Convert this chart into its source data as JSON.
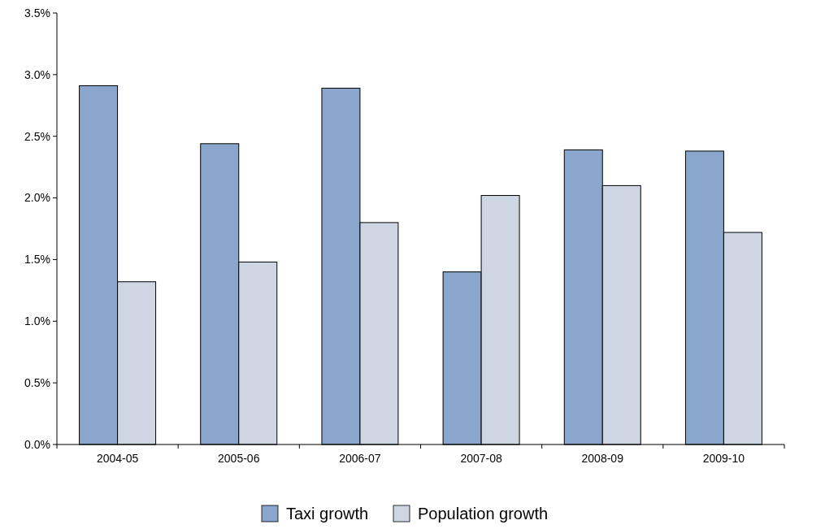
{
  "chart_data": {
    "type": "bar",
    "categories": [
      "2004-05",
      "2005-06",
      "2006-07",
      "2007-08",
      "2008-09",
      "2009-10"
    ],
    "series": [
      {
        "name": "Taxi growth",
        "color": "#8aa6cc",
        "values": [
          2.91,
          2.44,
          2.89,
          1.4,
          2.39,
          2.38
        ]
      },
      {
        "name": "Population growth",
        "color": "#cdd6e2",
        "values": [
          1.32,
          1.48,
          1.8,
          2.02,
          2.1,
          1.72
        ]
      }
    ],
    "ylim": [
      0,
      3.5
    ],
    "yticks": [
      {
        "value": 0,
        "label": "0.0%"
      },
      {
        "value": 0.5,
        "label": "0.5%"
      },
      {
        "value": 1,
        "label": "1.0%"
      },
      {
        "value": 1.5,
        "label": "1.5%"
      },
      {
        "value": 2,
        "label": "2.0%"
      },
      {
        "value": 2.5,
        "label": "2.5%"
      },
      {
        "value": 3,
        "label": "3.0%"
      },
      {
        "value": 3.5,
        "label": "3.5%"
      }
    ],
    "grid": false,
    "legend": "bottom"
  }
}
